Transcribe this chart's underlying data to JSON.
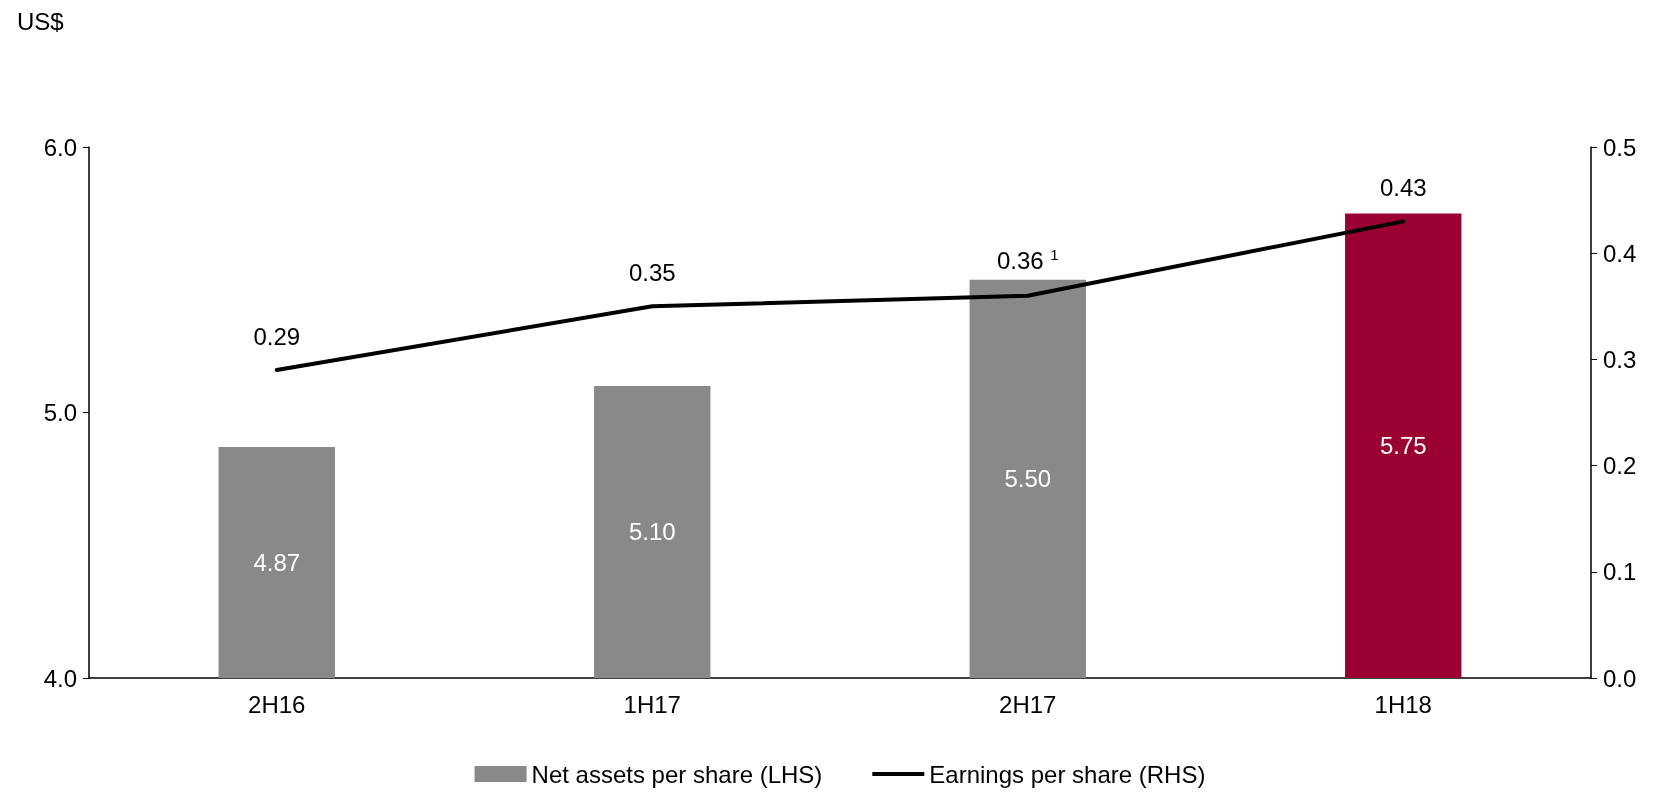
{
  "chart_data": {
    "type": "bar",
    "ylabel": "US$",
    "categories": [
      "2H16",
      "1H17",
      "2H17",
      "1H18"
    ],
    "series": [
      {
        "name": "Net assets per share (LHS)",
        "color": "#878a89",
        "colors": [
          "#878a89",
          "#878a89",
          "#878a89",
          "#9b0033"
        ],
        "values": [
          4.87,
          5.1,
          5.5,
          5.75
        ],
        "value_labels": [
          "4.87",
          "5.10",
          "5.50",
          "5.75"
        ]
      },
      {
        "name": "Earnings per share (RHS)",
        "type": "line",
        "axis": "y2",
        "color": "#000000",
        "values": [
          0.29,
          0.35,
          0.36,
          0.43
        ],
        "value_labels": [
          "0.29",
          "0.35",
          "0.36 $^{1}$",
          "0.43"
        ]
      }
    ],
    "ylim": [
      4,
      6
    ],
    "yticks": [
      {
        "value": 4,
        "label": "4.0"
      },
      {
        "value": 5,
        "label": "5.0"
      },
      {
        "value": 6,
        "label": "6.0"
      }
    ],
    "y2lim": [
      0,
      0.5
    ],
    "y2ticks": [
      {
        "value": 0,
        "label": "0.0"
      },
      0.1,
      0.2,
      0.3,
      0.4,
      0.5
    ],
    "grid": false,
    "legend": "bottom",
    "marker": "none",
    "line_style": "solid"
  }
}
